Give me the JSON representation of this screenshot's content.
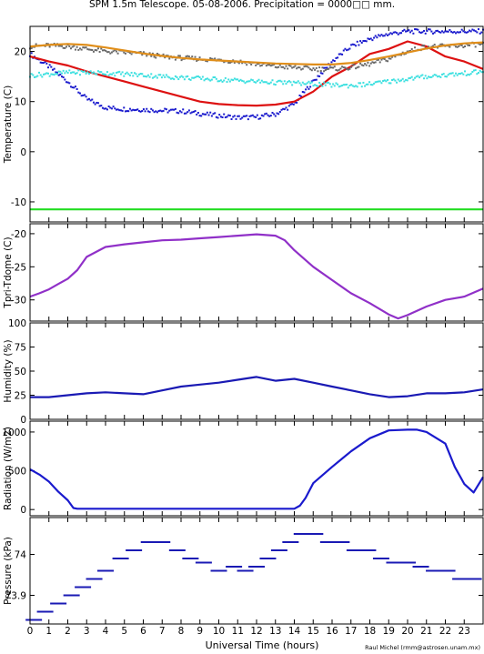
{
  "figure": {
    "title": "SPM 1.5m Telescope. 05-08-2006. Precipitation = 0000□□ mm.",
    "xlabel": "Universal Time (hours)",
    "credit": "Raul Michel (rmm@astrosen.unam.mx)",
    "x_ticks": [
      "0",
      "1",
      "2",
      "3",
      "4",
      "5",
      "6",
      "7",
      "8",
      "9",
      "10",
      "11",
      "12",
      "13",
      "14",
      "15",
      "16",
      "17",
      "18",
      "19",
      "20",
      "21",
      "22",
      "23"
    ]
  },
  "chart_data": [
    {
      "type": "line",
      "ylabel": "Temperature (C)",
      "xlim": [
        0,
        24
      ],
      "ylim": [
        -14,
        25
      ],
      "y_ticks": [
        -10,
        0,
        10,
        20
      ],
      "x": [
        0,
        1,
        2,
        3,
        4,
        5,
        6,
        7,
        8,
        9,
        10,
        11,
        12,
        13,
        14,
        15,
        16,
        17,
        18,
        19,
        20,
        21,
        22,
        23,
        24
      ],
      "series": [
        {
          "color": "#1a1acd",
          "style": "dots",
          "values": [
            19.5,
            17,
            14,
            10.5,
            8.8,
            8.5,
            8.4,
            8.2,
            8.1,
            7.6,
            7.2,
            6.8,
            6.9,
            7.5,
            9.5,
            14,
            18,
            21,
            22.5,
            23.5,
            24,
            24,
            24,
            24,
            24
          ]
        },
        {
          "color": "#dd1111",
          "style": "line",
          "values": [
            19,
            18,
            17.2,
            16,
            15,
            14,
            13,
            12,
            11,
            10,
            9.5,
            9.3,
            9.2,
            9.4,
            10,
            12,
            15,
            17,
            19.5,
            20.5,
            22,
            21,
            19,
            18,
            16.5
          ]
        },
        {
          "color": "#696969",
          "style": "dots",
          "values": [
            21,
            21.2,
            21,
            20.5,
            20,
            19.8,
            19.5,
            19,
            18.7,
            18.5,
            18.3,
            18,
            17.5,
            17,
            16.8,
            16.5,
            16.5,
            16.8,
            17.5,
            18.5,
            20,
            21,
            21,
            21.2,
            21.5
          ]
        },
        {
          "color": "#e08e1a",
          "style": "line",
          "values": [
            21,
            21.3,
            21.5,
            21.3,
            20.8,
            20.2,
            19.6,
            19.1,
            18.7,
            18.4,
            18.2,
            18,
            17.8,
            17.6,
            17.5,
            17.4,
            17.4,
            17.7,
            18.3,
            19,
            19.8,
            20.6,
            21.2,
            21.6,
            21.8
          ]
        },
        {
          "color": "#3ee0e0",
          "style": "dots",
          "values": [
            15.2,
            15.5,
            15.8,
            15.8,
            15.7,
            15.5,
            15.3,
            15,
            14.8,
            14.6,
            14.4,
            14.2,
            14,
            13.8,
            13.7,
            13.5,
            13.3,
            13.2,
            13.5,
            14,
            14.5,
            15,
            15.3,
            15.6,
            16
          ]
        },
        {
          "color": "#22dd22",
          "style": "line",
          "values": [
            -11.5,
            -11.5,
            -11.5,
            -11.5,
            -11.5,
            -11.5,
            -11.5,
            -11.5,
            -11.5,
            -11.5,
            -11.5,
            -11.5,
            -11.5,
            -11.5,
            -11.5,
            -11.5,
            -11.5,
            -11.5,
            -11.5,
            -11.5,
            -11.5,
            -11.5,
            -11.5,
            -11.5,
            -11.5
          ]
        }
      ]
    },
    {
      "type": "line",
      "ylabel": "Tpri-Tdome (C)",
      "xlim": [
        0,
        24
      ],
      "ylim": [
        -33.2,
        -18.5
      ],
      "y_ticks": [
        -20,
        -25,
        -30
      ],
      "x": [
        0,
        0.5,
        1,
        1.5,
        2,
        2.5,
        3,
        4,
        5,
        6,
        7,
        8,
        9,
        10,
        11,
        12,
        13,
        13.5,
        14,
        15,
        16,
        17,
        18,
        19,
        19.5,
        20,
        21,
        22,
        23,
        24
      ],
      "series": [
        {
          "color": "#9030c8",
          "style": "line",
          "values": [
            -29.5,
            -29,
            -28.4,
            -27.6,
            -26.8,
            -25.5,
            -23.5,
            -22,
            -21.6,
            -21.3,
            -21,
            -20.9,
            -20.7,
            -20.5,
            -20.3,
            -20.1,
            -20.3,
            -21,
            -22.5,
            -25,
            -27,
            -29,
            -30.5,
            -32.2,
            -32.8,
            -32.3,
            -31,
            -30,
            -29.5,
            -28.3
          ]
        }
      ]
    },
    {
      "type": "line",
      "ylabel": "Humidity (%)",
      "xlim": [
        0,
        24
      ],
      "ylim": [
        0,
        100
      ],
      "y_ticks": [
        0,
        25,
        50,
        75,
        100
      ],
      "x": [
        0,
        1,
        2,
        3,
        4,
        5,
        6,
        7,
        8,
        9,
        10,
        11,
        12,
        13,
        14,
        15,
        16,
        17,
        18,
        19,
        20,
        21,
        22,
        23,
        24
      ],
      "series": [
        {
          "color": "#1a1ab4",
          "style": "line",
          "values": [
            23,
            23,
            25,
            27,
            28,
            27,
            26,
            30,
            34,
            36,
            38,
            41,
            44,
            40,
            42,
            38,
            34,
            30,
            26,
            23,
            24,
            27,
            27,
            28,
            31
          ]
        }
      ]
    },
    {
      "type": "line",
      "ylabel": "Radiation (W/m2)",
      "xlim": [
        0,
        24
      ],
      "ylim": [
        -80,
        1140
      ],
      "y_ticks": [
        0,
        500,
        1000
      ],
      "x": [
        0,
        0.5,
        1,
        1.5,
        2,
        2.3,
        2.5,
        3,
        4,
        5,
        6,
        7,
        8,
        9,
        10,
        11,
        12,
        13,
        14,
        14.3,
        14.6,
        15,
        16,
        17,
        18,
        19,
        20,
        20.5,
        21,
        22,
        22.5,
        23,
        23.5,
        24
      ],
      "series": [
        {
          "color": "#1a1acd",
          "style": "line",
          "values": [
            520,
            450,
            360,
            230,
            120,
            20,
            10,
            10,
            10,
            10,
            10,
            10,
            10,
            10,
            10,
            10,
            10,
            10,
            10,
            50,
            150,
            340,
            550,
            750,
            920,
            1020,
            1030,
            1030,
            1000,
            850,
            550,
            330,
            220,
            420
          ]
        }
      ]
    },
    {
      "type": "scatter",
      "ylabel": "Pressure (kPa)",
      "xlim": [
        0,
        24
      ],
      "ylim": [
        73.83,
        74.09
      ],
      "y_ticks": [
        73.9,
        74
      ],
      "x": [
        0.2,
        0.8,
        1.5,
        2.2,
        2.8,
        3.4,
        4,
        4.8,
        5.5,
        6.3,
        7,
        7.8,
        8.5,
        9.2,
        10,
        10.8,
        11.4,
        12,
        12.6,
        13.2,
        13.8,
        14.4,
        15.1,
        15.8,
        16.5,
        17.2,
        17.9,
        18.6,
        19.3,
        20,
        20.7,
        21.4,
        22.1,
        22.8,
        23.5
      ],
      "series": [
        {
          "color": "#1a1ab4",
          "style": "dots",
          "values": [
            73.84,
            73.86,
            73.88,
            73.9,
            73.92,
            73.94,
            73.96,
            73.99,
            74.01,
            74.03,
            74.03,
            74.01,
            73.99,
            73.98,
            73.96,
            73.97,
            73.96,
            73.97,
            73.99,
            74.01,
            74.03,
            74.05,
            74.05,
            74.03,
            74.03,
            74.01,
            74.01,
            73.99,
            73.98,
            73.98,
            73.97,
            73.96,
            73.96,
            73.94,
            73.94
          ]
        }
      ]
    }
  ]
}
